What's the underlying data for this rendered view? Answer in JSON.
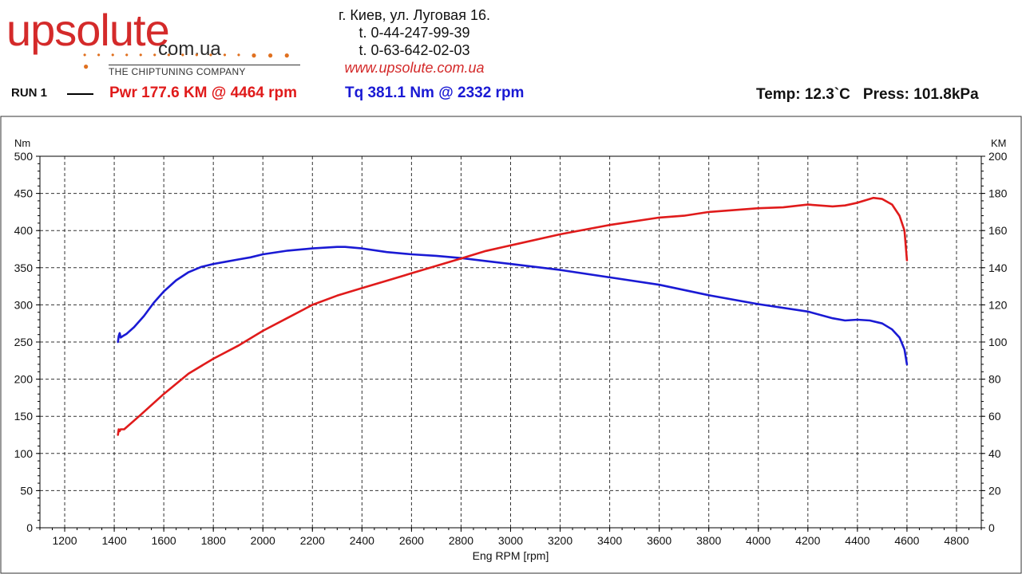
{
  "brand": {
    "name": "upsolute",
    "tld": "com.ua",
    "tagline": "THE CHIPTUNING COMPANY",
    "dots": "• • • • • • • • • • • • ● ● ● ●",
    "accent_color": "#d42a2a"
  },
  "contact": {
    "address": "г. Киев, ул. Луговая 16.",
    "phone1": "t. 0-44-247-99-39",
    "phone2": "t. 0-63-642-02-03",
    "website": "www.upsolute.com.ua"
  },
  "run": {
    "label": "RUN 1",
    "power_summary": "Pwr  177.6 KM @ 4464 rpm",
    "torque_summary": "Tq 381.1 Nm @ 2332 rpm",
    "temp": "Temp: 12.3`C",
    "press": "Press: 101.8kPa"
  },
  "chart_data": {
    "type": "line",
    "xlabel": "Eng RPM [rpm]",
    "ylabel_left": "Nm",
    "ylabel_right": "KM",
    "xlim": [
      1100,
      4900
    ],
    "x_ticks": [
      1200,
      1400,
      1600,
      1800,
      2000,
      2200,
      2400,
      2600,
      2800,
      3000,
      3200,
      3400,
      3600,
      3800,
      4000,
      4200,
      4400,
      4600,
      4800
    ],
    "ylim_left": [
      0,
      500
    ],
    "y_ticks_left": [
      0,
      50,
      100,
      150,
      200,
      250,
      300,
      350,
      400,
      450,
      500
    ],
    "ylim_right": [
      0,
      200
    ],
    "y_ticks_right": [
      0,
      20,
      40,
      60,
      80,
      100,
      120,
      140,
      160,
      180,
      200
    ],
    "grid": true,
    "series": [
      {
        "name": "Tq",
        "axis": "left",
        "color": "#1a1ad4",
        "x": [
          1415,
          1418,
          1422,
          1426,
          1435,
          1450,
          1480,
          1520,
          1560,
          1600,
          1650,
          1700,
          1750,
          1800,
          1850,
          1900,
          1950,
          2000,
          2100,
          2200,
          2300,
          2332,
          2400,
          2500,
          2600,
          2700,
          2800,
          2900,
          3000,
          3200,
          3400,
          3600,
          3800,
          4000,
          4200,
          4300,
          4350,
          4400,
          4450,
          4500,
          4540,
          4570,
          4590,
          4600
        ],
        "values": [
          250,
          258,
          262,
          256,
          258,
          261,
          270,
          285,
          303,
          318,
          333,
          344,
          351,
          355,
          358,
          361,
          364,
          368,
          373,
          376,
          378,
          378,
          376,
          371,
          368,
          366,
          363,
          359,
          355,
          347,
          337,
          327,
          313,
          301,
          291,
          282,
          279,
          280,
          279,
          275,
          267,
          256,
          240,
          220
        ]
      },
      {
        "name": "Pwr",
        "axis": "right",
        "color": "#e01b1b",
        "x": [
          1415,
          1418,
          1422,
          1426,
          1440,
          1500,
          1600,
          1700,
          1800,
          1900,
          2000,
          2100,
          2200,
          2300,
          2400,
          2500,
          2600,
          2700,
          2800,
          2900,
          3000,
          3200,
          3400,
          3600,
          3700,
          3800,
          3900,
          4000,
          4100,
          4200,
          4300,
          4350,
          4400,
          4464,
          4500,
          4540,
          4570,
          4590,
          4600
        ],
        "values": [
          50,
          53,
          52,
          53,
          53,
          60,
          72,
          83,
          91,
          98,
          106,
          113,
          120,
          125,
          129,
          133,
          137,
          141,
          145,
          149,
          152,
          158,
          163,
          167,
          168,
          170,
          171,
          172,
          172.5,
          174,
          173,
          173.5,
          175,
          177.6,
          177,
          174,
          168,
          160,
          144
        ]
      }
    ]
  }
}
